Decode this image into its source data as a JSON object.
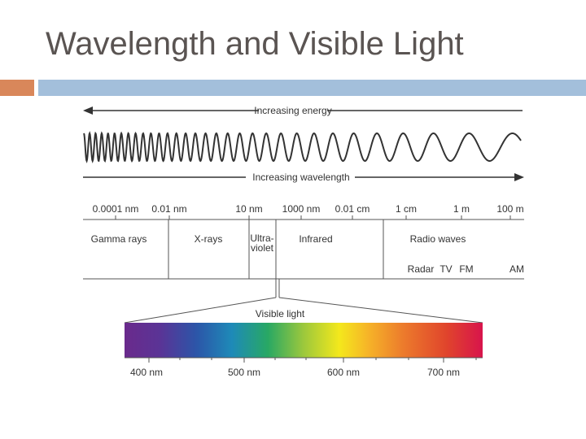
{
  "slide": {
    "title": "Wavelength and Visible Light"
  },
  "diagram": {
    "energy_arrow_label": "Increasing energy",
    "wavelength_arrow_label": "Increasing wavelength",
    "scale_labels": [
      "0.0001 nm",
      "0.01 nm",
      "10 nm",
      "1000 nm",
      "0.01 cm",
      "1 cm",
      "1 m",
      "100 m"
    ],
    "regions": {
      "gamma": "Gamma rays",
      "xrays": "X-rays",
      "uv_line1": "Ultra-",
      "uv_line2": "violet",
      "infrared": "Infrared",
      "radio": "Radio waves"
    },
    "radio_bands": [
      "Radar",
      "TV",
      "FM",
      "AM"
    ],
    "visible_label": "Visible light",
    "visible_ticks": [
      "400 nm",
      "500 nm",
      "600 nm",
      "700 nm"
    ]
  }
}
